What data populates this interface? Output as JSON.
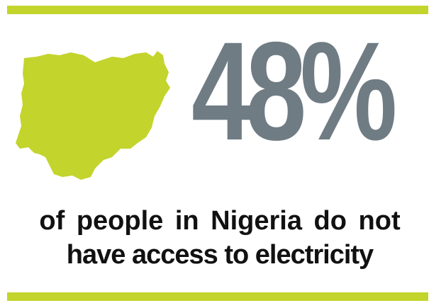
{
  "stat": {
    "value": "48%",
    "caption_line_1": "of people in Nigeria do not",
    "caption_line_2": "have access to electricity"
  },
  "colors": {
    "accent": "#c3d42c",
    "number": "#707c84",
    "text": "#111111"
  },
  "icons": {
    "map": "nigeria-map-icon"
  }
}
